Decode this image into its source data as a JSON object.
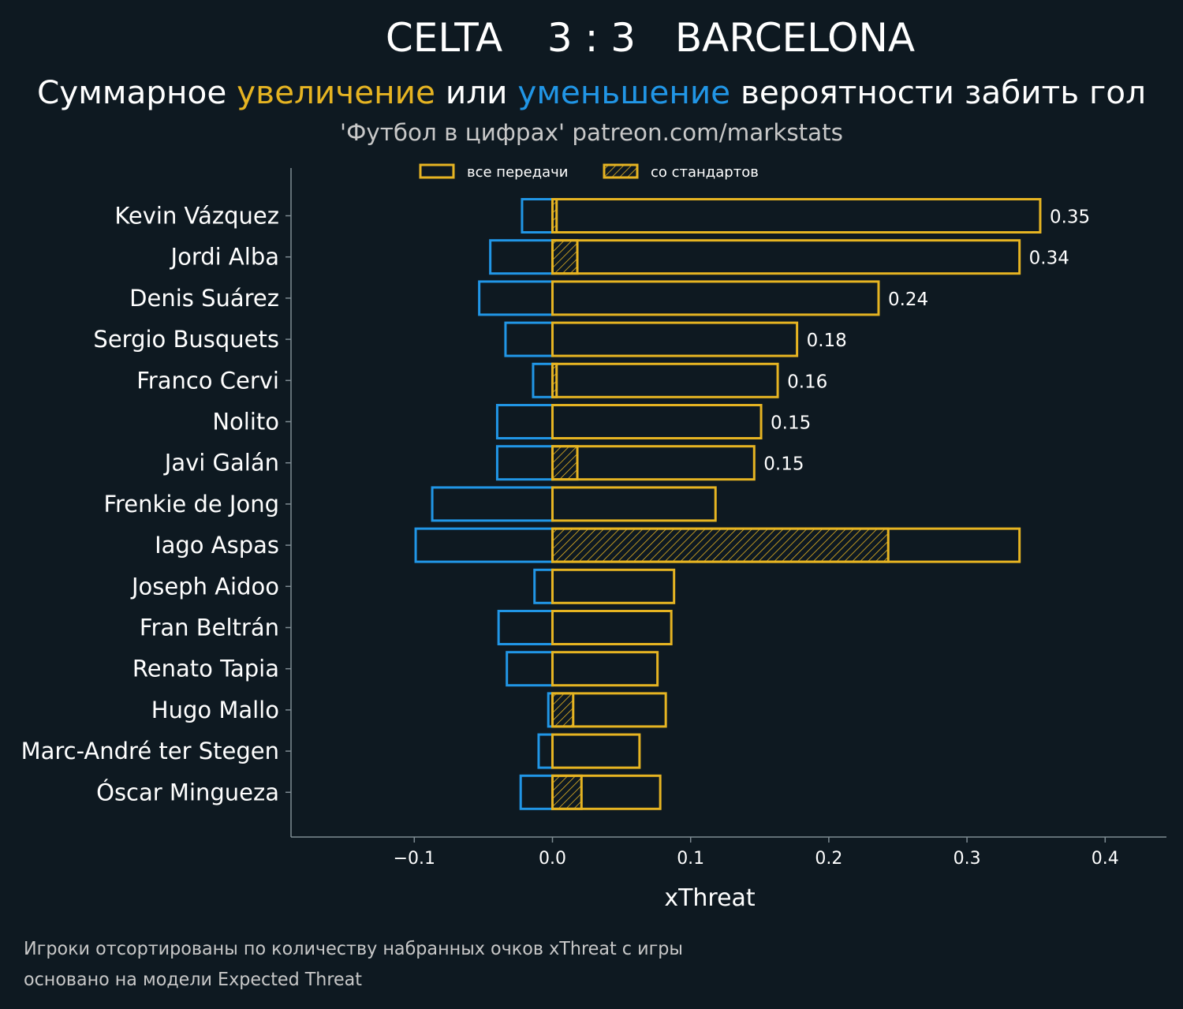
{
  "header": {
    "team_home": "CELTA",
    "score": "3 : 3",
    "team_away": "BARCELONA",
    "subtitle_part1": "Суммарное ",
    "subtitle_increase": "увеличение",
    "subtitle_part2": " или ",
    "subtitle_decrease": "уменьшение",
    "subtitle_part3": " вероятности забить гол",
    "source": "'Футбол в цифрах' patreon.com/markstats"
  },
  "legend": {
    "all_passes": "все передачи",
    "set_pieces": "со стандартов"
  },
  "footer": {
    "line1": "Игроки отсортированы по количеству набранных очков xThreat с игры",
    "line2": "основано на модели Expected Threat"
  },
  "colors": {
    "background": "#0e1921",
    "positive": "#e6b422",
    "negative": "#2196e6",
    "axis": "#7f8c93",
    "text": "#ffffff",
    "muted": "#c8c8c8"
  },
  "chart_data": {
    "type": "bar",
    "orientation": "horizontal",
    "title": "CELTA 3 : 3 BARCELONA",
    "xlabel": "xThreat",
    "ylabel": "",
    "xlim": [
      -0.19,
      0.44
    ],
    "xticks": [
      -0.1,
      0.0,
      0.1,
      0.2,
      0.3,
      0.4
    ],
    "xtick_labels": [
      "−0.1",
      "0.0",
      "0.1",
      "0.2",
      "0.3",
      "0.4"
    ],
    "legend_position": "top-center",
    "categories": [
      "Kevin Vázquez",
      "Jordi Alba",
      "Denis Suárez",
      "Sergio Busquets",
      "Franco Cervi",
      "Nolito",
      "Javi Galán",
      "Frenkie de Jong",
      "Iago Aspas",
      "Joseph Aidoo",
      "Fran Beltrán",
      "Renato Tapia",
      "Hugo Mallo",
      "Marc-André ter Stegen",
      "Óscar Mingueza"
    ],
    "series": [
      {
        "name": "positive (все передачи)",
        "values": [
          0.353,
          0.338,
          0.236,
          0.177,
          0.163,
          0.151,
          0.146,
          0.118,
          0.338,
          0.088,
          0.086,
          0.076,
          0.082,
          0.063,
          0.078
        ]
      },
      {
        "name": "negative (все передачи)",
        "values": [
          -0.022,
          -0.045,
          -0.053,
          -0.034,
          -0.014,
          -0.04,
          -0.04,
          -0.087,
          -0.099,
          -0.013,
          -0.039,
          -0.033,
          -0.003,
          -0.01,
          -0.023
        ]
      },
      {
        "name": "со стандартов",
        "values": [
          0.003,
          0.018,
          0.0,
          0.0,
          0.003,
          0.0,
          0.018,
          0.0,
          0.243,
          0.0,
          0.0,
          0.0,
          0.015,
          0.0,
          0.021
        ]
      }
    ],
    "value_labels": [
      "0.35",
      "0.34",
      "0.24",
      "0.18",
      "0.16",
      "0.15",
      "0.15",
      null,
      null,
      null,
      null,
      null,
      null,
      null,
      null
    ]
  }
}
